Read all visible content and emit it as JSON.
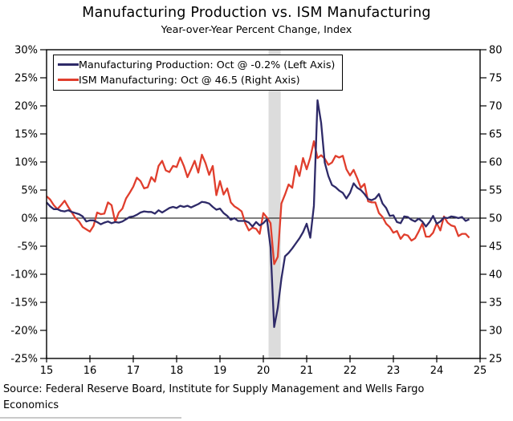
{
  "chart": {
    "title": "Manufacturing Production vs. ISM Manufacturing",
    "subtitle": "Year-over-Year Percent Change, Index",
    "source": "Source: Federal Reserve Board, Institute for Supply Management and Wells Fargo Economics"
  },
  "chart_data": {
    "type": "line",
    "title": "Manufacturing Production vs. ISM Manufacturing",
    "subtitle": "Year-over-Year Percent Change, Index",
    "x_range": [
      2015,
      2025
    ],
    "x_axis": {
      "tick_values": [
        2015,
        2016,
        2017,
        2018,
        2019,
        2020,
        2021,
        2022,
        2023,
        2024,
        2025
      ],
      "tick_labels": [
        "15",
        "16",
        "17",
        "18",
        "19",
        "20",
        "21",
        "22",
        "23",
        "24",
        "25"
      ]
    },
    "left_axis": {
      "lim": [
        -25,
        30
      ],
      "tick_values": [
        30,
        25,
        20,
        15,
        10,
        5,
        0,
        -5,
        -10,
        -15,
        -20,
        -25
      ],
      "tick_labels": [
        "30%",
        "25%",
        "20%",
        "15%",
        "10%",
        "5%",
        "0%",
        "-5%",
        "-10%",
        "-15%",
        "-20%",
        "-25%"
      ]
    },
    "right_axis": {
      "lim": [
        25,
        80
      ],
      "tick_values": [
        80,
        75,
        70,
        65,
        60,
        55,
        50,
        45,
        40,
        35,
        30,
        25
      ],
      "tick_labels": [
        "80",
        "75",
        "70",
        "65",
        "60",
        "55",
        "50",
        "45",
        "40",
        "35",
        "30",
        "25"
      ]
    },
    "zero_line": 0,
    "grid": "off",
    "legend_position": "top-left",
    "recession_band": {
      "from": 2020.12,
      "to": 2020.4,
      "color": "#dcdcdc"
    },
    "frequency": "monthly",
    "start_period": "2015-01",
    "end_period": "2024-10",
    "series": [
      {
        "id": "manufacturing-production",
        "name": "Manufacturing Production",
        "legend_label": "Manufacturing Production: Oct @ -0.2% (Left Axis)",
        "axis": "left",
        "unit": "percent",
        "color": "#2e2a68",
        "latest_label": "Oct @ -0.2%",
        "values": [
          2.8,
          2.1,
          1.6,
          1.6,
          1.3,
          1.2,
          1.4,
          1.1,
          0.9,
          0.7,
          0.3,
          -0.6,
          -0.4,
          -0.4,
          -0.7,
          -1.1,
          -0.8,
          -0.6,
          -0.9,
          -0.7,
          -0.8,
          -0.6,
          -0.2,
          0.2,
          0.3,
          0.6,
          1.0,
          1.2,
          1.1,
          1.1,
          0.8,
          1.4,
          1.0,
          1.4,
          1.8,
          2.0,
          1.8,
          2.2,
          2.0,
          2.2,
          1.9,
          2.2,
          2.5,
          2.9,
          2.8,
          2.6,
          2.0,
          1.5,
          1.7,
          0.9,
          0.4,
          -0.3,
          0.0,
          -0.5,
          -0.5,
          -0.5,
          -0.8,
          -1.5,
          -0.7,
          -1.3,
          -0.9,
          -0.2,
          -5.2,
          -19.4,
          -16.0,
          -10.8,
          -6.8,
          -6.2,
          -5.4,
          -4.5,
          -3.6,
          -2.5,
          -1.0,
          -3.5,
          2.2,
          21.0,
          17.0,
          9.9,
          7.5,
          5.9,
          5.5,
          4.9,
          4.5,
          3.5,
          4.5,
          6.2,
          5.4,
          5.0,
          4.3,
          3.4,
          3.2,
          3.5,
          4.3,
          2.6,
          1.8,
          0.4,
          0.5,
          -0.7,
          -0.9,
          0.3,
          0.2,
          -0.3,
          -0.6,
          -0.1,
          -0.6,
          -1.5,
          -0.7,
          0.4,
          -1.0,
          -0.6,
          0.1,
          0.0,
          0.3,
          0.2,
          0.0,
          0.2,
          -0.5,
          -0.2
        ]
      },
      {
        "id": "ism-manufacturing",
        "name": "ISM Manufacturing",
        "legend_label": "ISM Manufacturing: Oct @ 46.5 (Right Axis)",
        "axis": "right",
        "unit": "index",
        "color": "#e03e2d",
        "latest_label": "Oct @ 46.5",
        "values": [
          53.9,
          53.3,
          52.3,
          51.6,
          52.3,
          53.1,
          52.0,
          51.0,
          50.0,
          49.4,
          48.4,
          48.0,
          47.6,
          48.6,
          51.0,
          50.7,
          50.8,
          52.8,
          52.3,
          49.3,
          51.0,
          51.7,
          53.5,
          54.5,
          55.6,
          57.2,
          56.6,
          55.3,
          55.5,
          57.3,
          56.5,
          59.3,
          60.2,
          58.5,
          58.2,
          59.3,
          59.1,
          60.8,
          59.3,
          57.3,
          58.7,
          60.2,
          58.1,
          61.3,
          59.8,
          57.7,
          59.3,
          54.1,
          56.6,
          54.2,
          55.3,
          52.8,
          52.1,
          51.7,
          51.2,
          49.1,
          47.8,
          48.3,
          48.1,
          47.2,
          50.9,
          50.1,
          49.1,
          41.8,
          43.1,
          52.6,
          54.2,
          56.0,
          55.4,
          59.3,
          57.5,
          60.7,
          58.7,
          60.8,
          63.7,
          60.7,
          61.2,
          60.6,
          59.5,
          59.9,
          61.1,
          60.8,
          61.1,
          58.7,
          57.6,
          58.6,
          57.1,
          55.4,
          56.1,
          53.0,
          52.8,
          52.8,
          50.9,
          50.2,
          49.0,
          48.4,
          47.4,
          47.7,
          46.3,
          47.1,
          46.9,
          46.0,
          46.4,
          47.6,
          49.0,
          46.7,
          46.7,
          47.4,
          49.1,
          47.8,
          50.3,
          49.2,
          48.7,
          48.5,
          46.8,
          47.2,
          47.2,
          46.5
        ]
      }
    ]
  }
}
